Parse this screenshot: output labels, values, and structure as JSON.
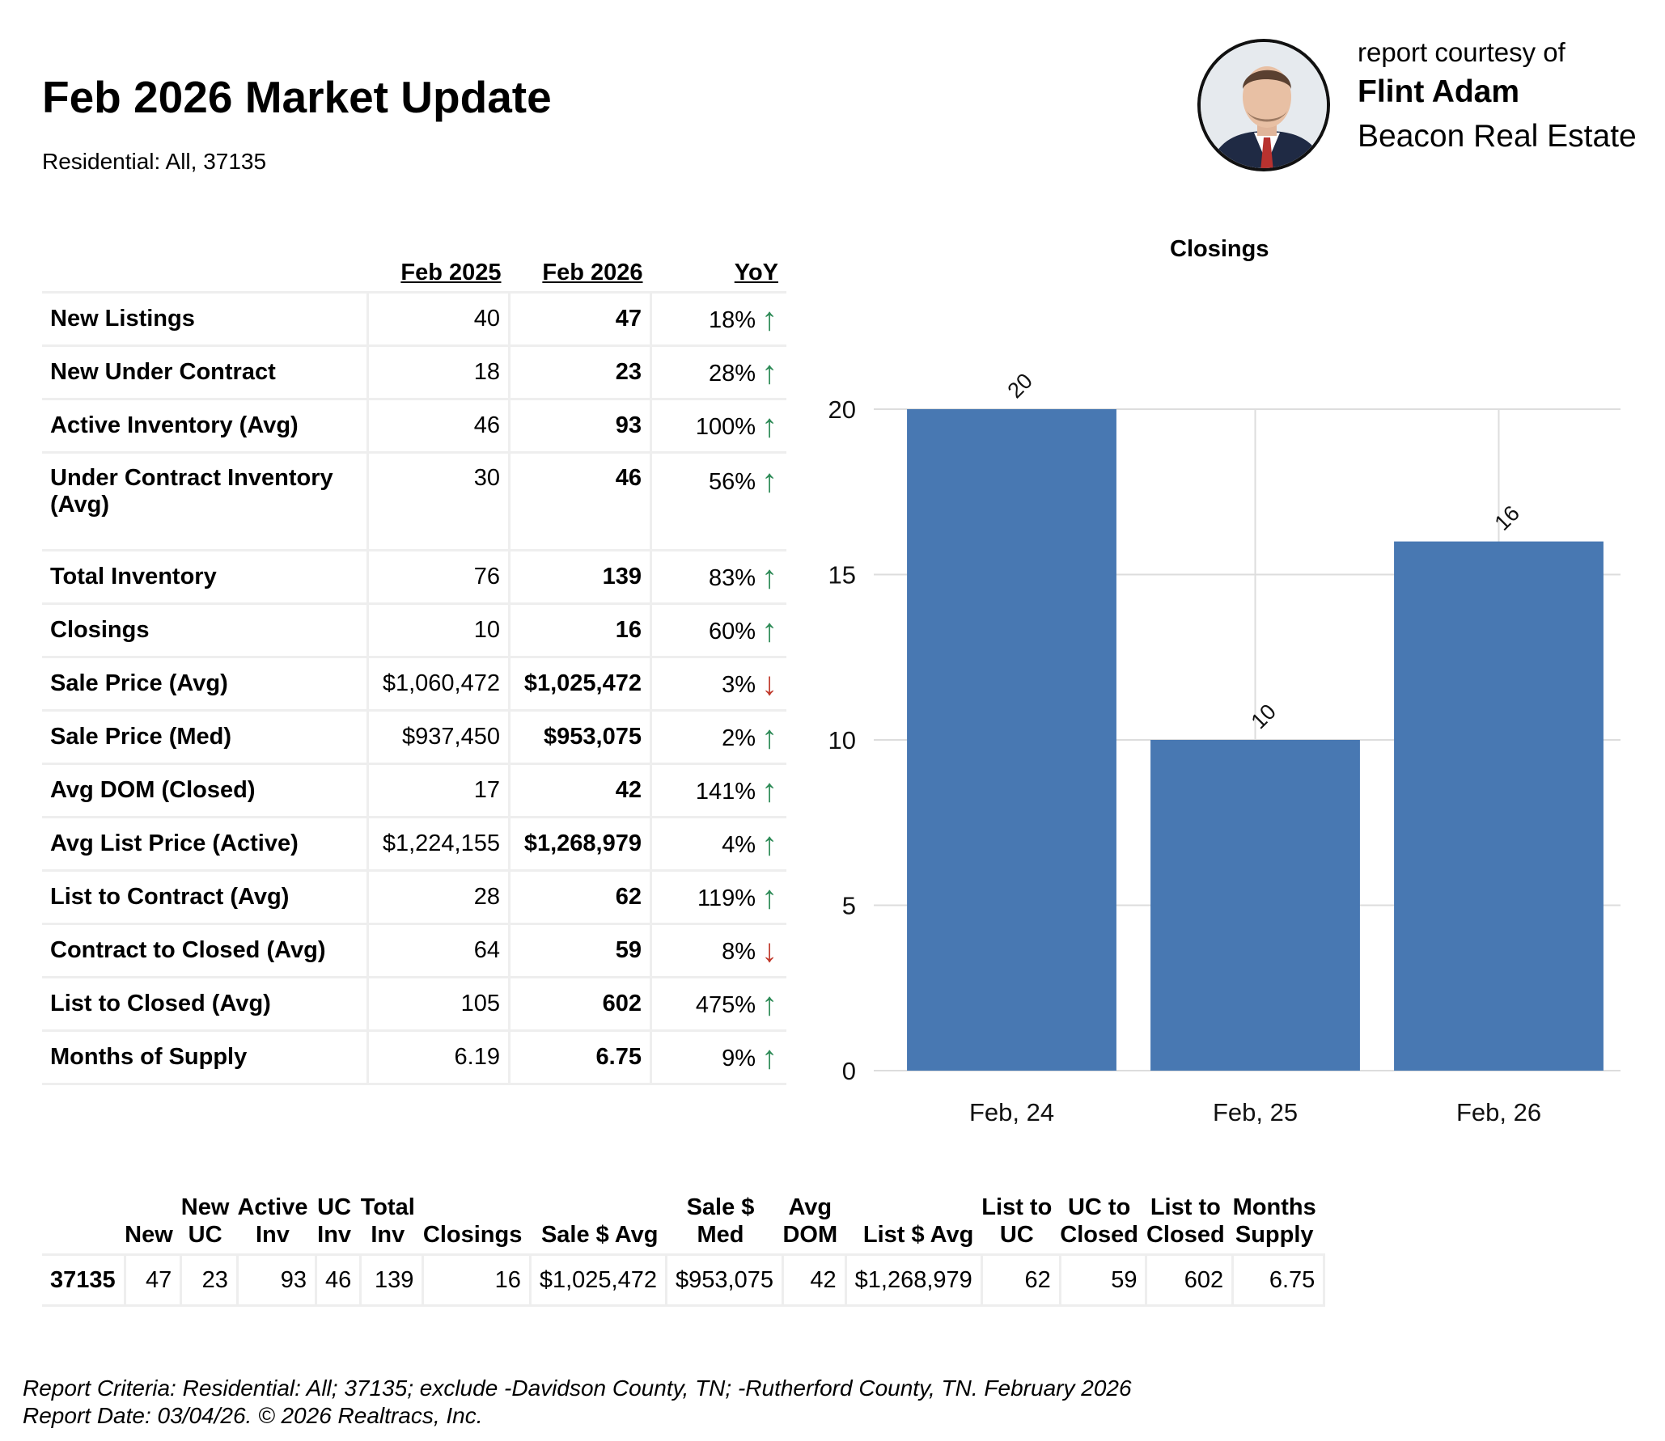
{
  "report": {
    "title": "Feb 2026 Market Update",
    "subtitle": "Residential: All, 37135"
  },
  "agent": {
    "courtesy": "report courtesy of",
    "name": "Flint Adam",
    "company": "Beacon Real Estate"
  },
  "stats_table": {
    "headers": [
      "Feb 2025",
      "Feb 2026",
      "YoY"
    ],
    "rows": [
      {
        "label": "New Listings",
        "prev": "40",
        "curr": "47",
        "yoy": "18%",
        "dir": "up"
      },
      {
        "label": "New Under Contract",
        "prev": "18",
        "curr": "23",
        "yoy": "28%",
        "dir": "up"
      },
      {
        "label": "Active Inventory (Avg)",
        "prev": "46",
        "curr": "93",
        "yoy": "100%",
        "dir": "up"
      },
      {
        "label": "Under Contract Inventory (Avg)",
        "prev": "30",
        "curr": "46",
        "yoy": "56%",
        "dir": "up"
      },
      {
        "label": "Total Inventory",
        "prev": "76",
        "curr": "139",
        "yoy": "83%",
        "dir": "up"
      },
      {
        "label": "Closings",
        "prev": "10",
        "curr": "16",
        "yoy": "60%",
        "dir": "up"
      },
      {
        "label": "Sale Price (Avg)",
        "prev": "$1,060,472",
        "curr": "$1,025,472",
        "yoy": "3%",
        "dir": "down"
      },
      {
        "label": "Sale Price (Med)",
        "prev": "$937,450",
        "curr": "$953,075",
        "yoy": "2%",
        "dir": "up"
      },
      {
        "label": "Avg DOM (Closed)",
        "prev": "17",
        "curr": "42",
        "yoy": "141%",
        "dir": "up"
      },
      {
        "label": "Avg List Price (Active)",
        "prev": "$1,224,155",
        "curr": "$1,268,979",
        "yoy": "4%",
        "dir": "up"
      },
      {
        "label": "List to Contract (Avg)",
        "prev": "28",
        "curr": "62",
        "yoy": "119%",
        "dir": "up"
      },
      {
        "label": "Contract to Closed (Avg)",
        "prev": "64",
        "curr": "59",
        "yoy": "8%",
        "dir": "down"
      },
      {
        "label": "List to Closed (Avg)",
        "prev": "105",
        "curr": "602",
        "yoy": "475%",
        "dir": "up"
      },
      {
        "label": "Months of Supply",
        "prev": "6.19",
        "curr": "6.75",
        "yoy": "9%",
        "dir": "up"
      }
    ]
  },
  "arrows": {
    "up": "↑",
    "down": "↓"
  },
  "chart_data": {
    "type": "bar",
    "title": "Closings",
    "categories": [
      "Feb, 24",
      "Feb, 25",
      "Feb, 26"
    ],
    "values": [
      20,
      10,
      16
    ],
    "data_labels": [
      "20",
      "10",
      "16"
    ],
    "ylim": [
      0,
      20
    ],
    "yticks": [
      0,
      5,
      10,
      15,
      20
    ],
    "ytick_labels": [
      "0",
      "5",
      "10",
      "15",
      "20"
    ],
    "grid": true,
    "color": "#4878b2"
  },
  "summary_table": {
    "headers": [
      [
        "",
        ""
      ],
      [
        "",
        "New"
      ],
      [
        "New",
        "UC"
      ],
      [
        "Active",
        "Inv"
      ],
      [
        "UC",
        "Inv"
      ],
      [
        "Total",
        "Inv"
      ],
      [
        "",
        "Closings"
      ],
      [
        "",
        "Sale $ Avg"
      ],
      [
        "Sale $",
        "Med"
      ],
      [
        "Avg",
        "DOM"
      ],
      [
        "",
        "List $ Avg"
      ],
      [
        "List to",
        "UC"
      ],
      [
        "UC to",
        "Closed"
      ],
      [
        "List to",
        "Closed"
      ],
      [
        "Months",
        "Supply"
      ]
    ],
    "row": [
      "37135",
      "47",
      "23",
      "93",
      "46",
      "139",
      "16",
      "$1,025,472",
      "$953,075",
      "42",
      "$1,268,979",
      "62",
      "59",
      "602",
      "6.75"
    ]
  },
  "footer": {
    "criteria": "Report Criteria: Residential: All; 37135; exclude -Davidson County, TN; -Rutherford County, TN. February 2026",
    "date": "Report Date: 03/04/26. © 2026 Realtracs, Inc."
  }
}
